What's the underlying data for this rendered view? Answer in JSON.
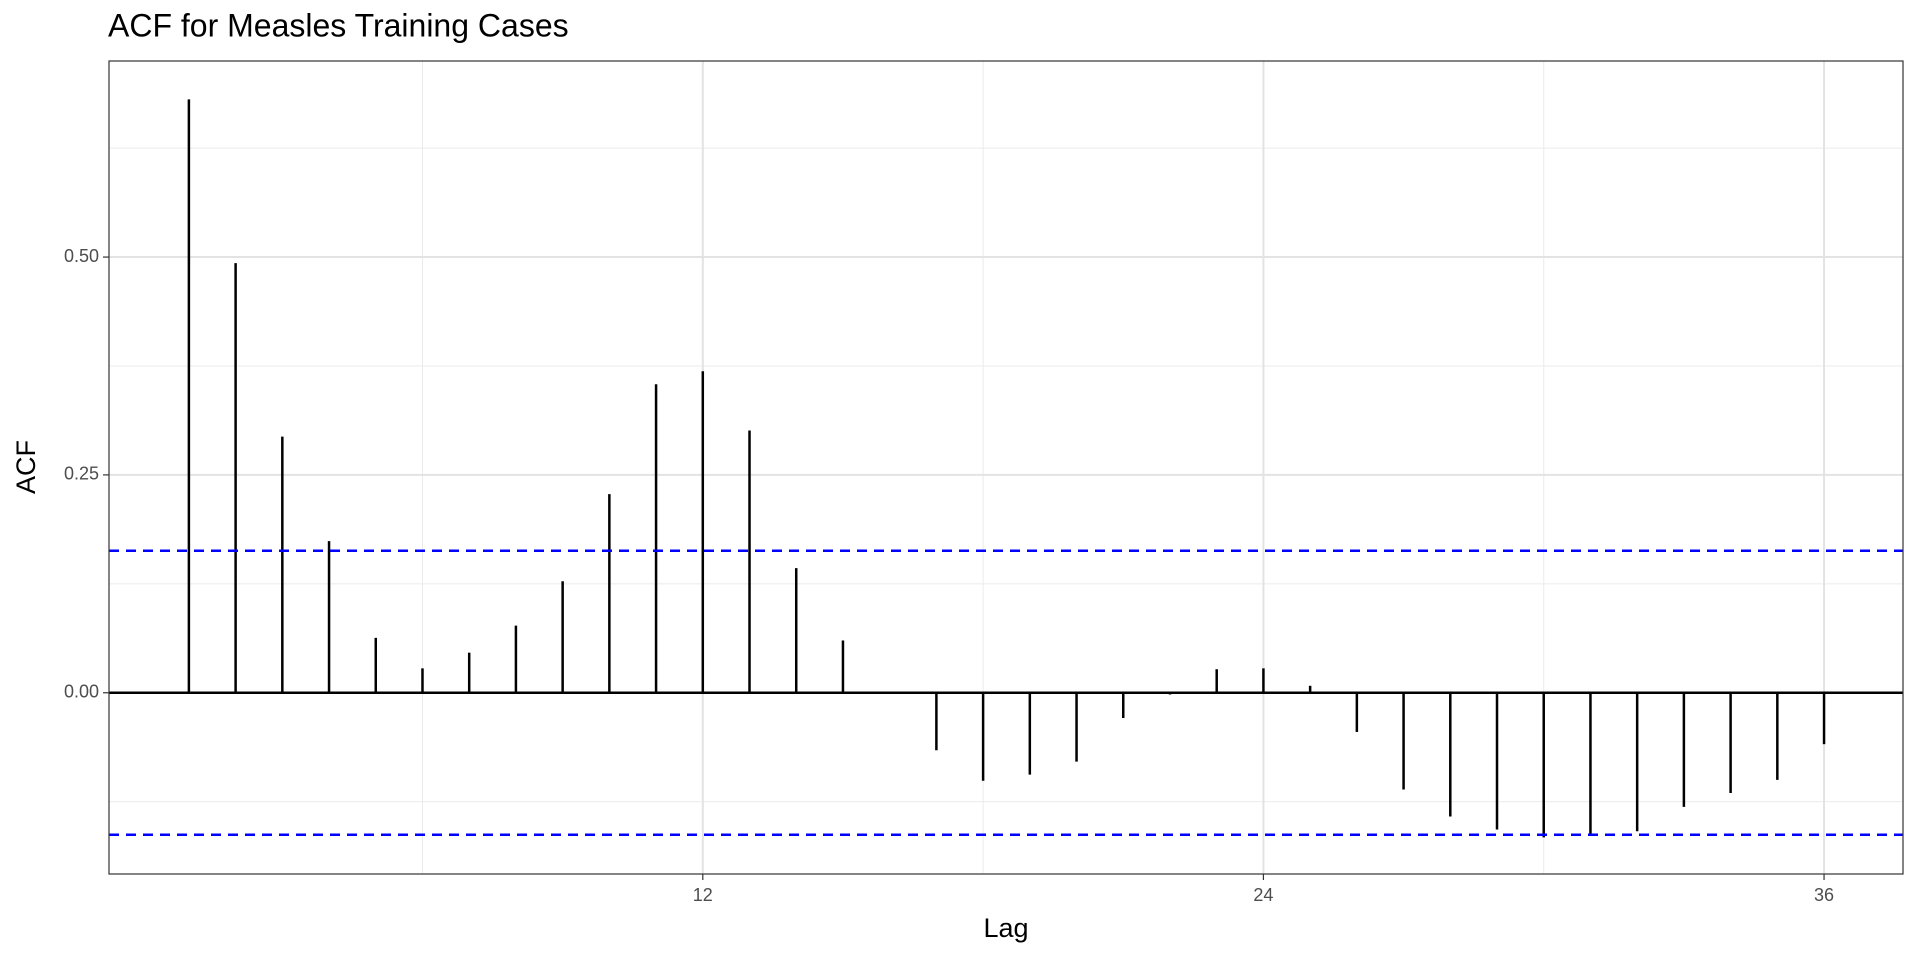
{
  "chart_data": {
    "type": "acf",
    "title": "ACF for Measles Training Cases",
    "x_label": "Lag",
    "y_label": "ACF",
    "x": [
      1,
      2,
      3,
      4,
      5,
      6,
      7,
      8,
      9,
      10,
      11,
      12,
      13,
      14,
      15,
      16,
      17,
      18,
      19,
      20,
      21,
      22,
      23,
      24,
      25,
      26,
      27,
      28,
      29,
      30,
      31,
      32,
      33,
      34,
      35,
      36
    ],
    "values": [
      0.681,
      0.493,
      0.294,
      0.174,
      0.063,
      0.028,
      0.046,
      0.077,
      0.128,
      0.228,
      0.354,
      0.369,
      0.301,
      0.143,
      0.06,
      0.001,
      -0.066,
      -0.101,
      -0.094,
      -0.079,
      -0.029,
      -0.002,
      0.027,
      0.028,
      0.008,
      -0.045,
      -0.111,
      -0.142,
      -0.157,
      -0.166,
      -0.164,
      -0.159,
      -0.131,
      -0.115,
      -0.1,
      -0.059
    ],
    "color": "#000000",
    "ci_bounds": [
      0.163,
      -0.163
    ],
    "ci_color": "#0000ff",
    "xlim": [
      -0.71,
      37.69
    ],
    "ylim": [
      -0.208,
      0.725
    ],
    "xticks": [
      12,
      24,
      36
    ],
    "minor_xticks": [
      6,
      18,
      30
    ],
    "yticks": [
      {
        "value": 0,
        "label": "0.00"
      },
      {
        "value": 0.25,
        "label": "0.25"
      },
      {
        "value": 0.5,
        "label": "0.50"
      }
    ],
    "minor_yticks": [
      -0.125,
      0.125,
      0.375,
      0.625
    ],
    "grid": true
  }
}
